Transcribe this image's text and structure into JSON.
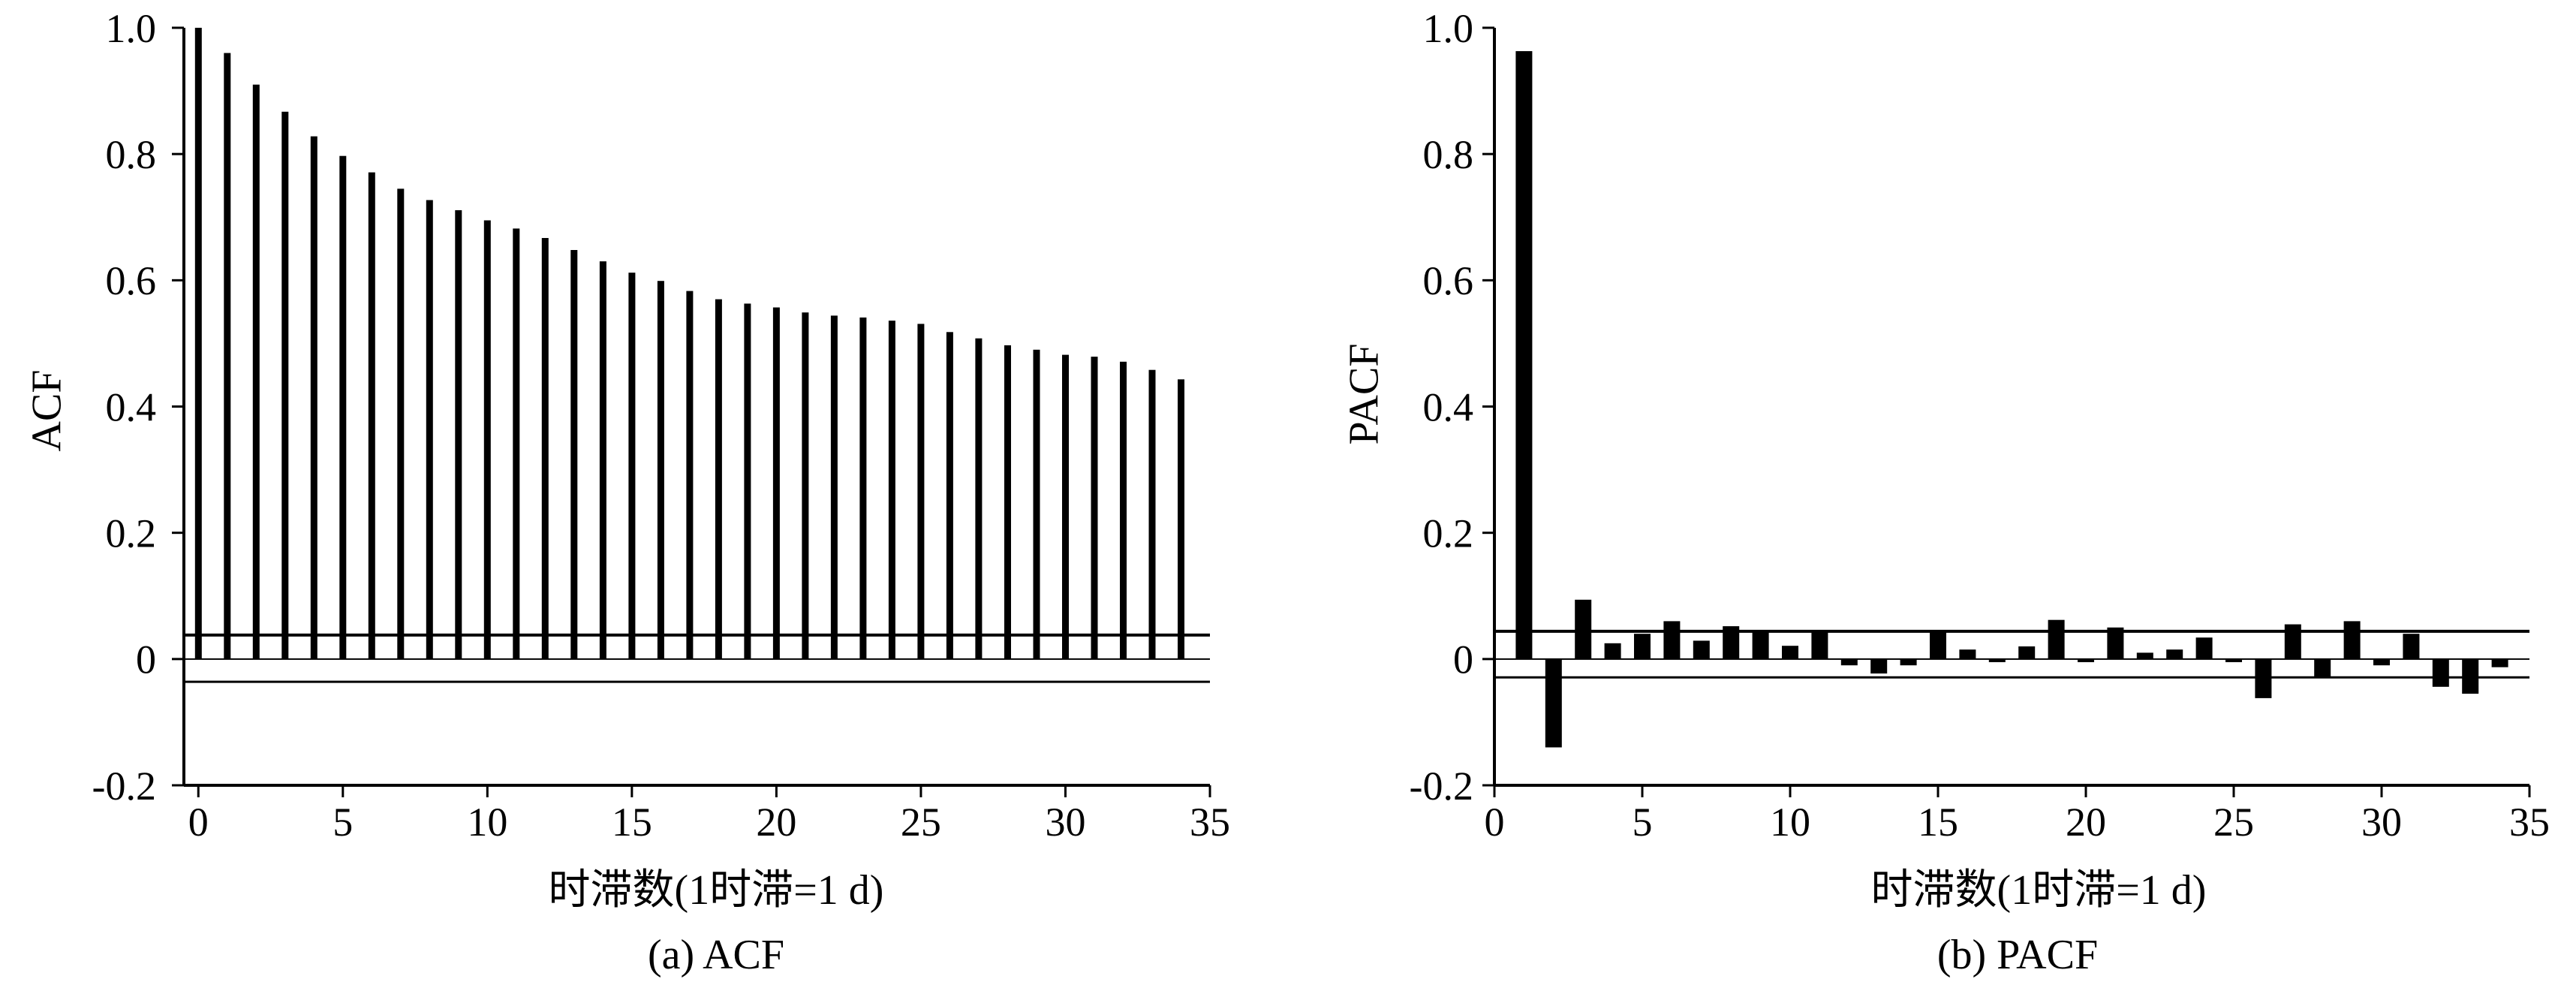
{
  "chart_data": [
    {
      "type": "bar",
      "caption": "(a) ACF",
      "ylabel": "ACF",
      "xlabel": "时滞数(1时滞=1 d)",
      "xlim": [
        -0.5,
        35
      ],
      "ylim": [
        -0.2,
        1.0
      ],
      "x_ticks": [
        "0",
        "5",
        "10",
        "15",
        "20",
        "25",
        "30",
        "35"
      ],
      "y_ticks": [
        "-0.2",
        "0",
        "0.2",
        "0.4",
        "0.6",
        "0.8",
        "1.0"
      ],
      "grid": false,
      "x": [
        0,
        1,
        2,
        3,
        4,
        5,
        6,
        7,
        8,
        9,
        10,
        11,
        12,
        13,
        14,
        15,
        16,
        17,
        18,
        19,
        20,
        21,
        22,
        23,
        24,
        25,
        26,
        27,
        28,
        29,
        30,
        31,
        32,
        33,
        34
      ],
      "values": [
        1.0,
        0.96,
        0.91,
        0.867,
        0.828,
        0.797,
        0.771,
        0.745,
        0.727,
        0.711,
        0.695,
        0.682,
        0.667,
        0.648,
        0.63,
        0.612,
        0.599,
        0.583,
        0.57,
        0.563,
        0.557,
        0.549,
        0.544,
        0.541,
        0.536,
        0.531,
        0.518,
        0.508,
        0.497,
        0.49,
        0.482,
        0.479,
        0.471,
        0.458,
        0.443
      ],
      "confidence_bounds": [
        0.038,
        -0.036
      ]
    },
    {
      "type": "bar",
      "caption": "(b) PACF",
      "ylabel": "PACF",
      "xlabel": "时滞数(1时滞=1 d)",
      "xlim": [
        0,
        35
      ],
      "ylim": [
        -0.2,
        1.0
      ],
      "x_ticks": [
        "0",
        "5",
        "10",
        "15",
        "20",
        "25",
        "30",
        "35"
      ],
      "y_ticks": [
        "-0.2",
        "0",
        "0.2",
        "0.4",
        "0.6",
        "0.8",
        "1.0"
      ],
      "grid": false,
      "x": [
        1,
        2,
        3,
        4,
        5,
        6,
        7,
        8,
        9,
        10,
        11,
        12,
        13,
        14,
        15,
        16,
        17,
        18,
        19,
        20,
        21,
        22,
        23,
        24,
        25,
        26,
        27,
        28,
        29,
        30,
        31,
        32,
        33,
        34
      ],
      "values": [
        0.963,
        -0.14,
        0.094,
        0.025,
        0.04,
        0.06,
        0.029,
        0.052,
        0.042,
        0.021,
        0.044,
        -0.01,
        -0.023,
        -0.01,
        0.042,
        0.015,
        -0.005,
        0.02,
        0.062,
        -0.005,
        0.05,
        0.01,
        0.015,
        0.034,
        -0.005,
        -0.062,
        0.055,
        -0.029,
        0.06,
        -0.01,
        0.04,
        -0.044,
        -0.055,
        -0.013
      ],
      "confidence_bounds": [
        0.044,
        -0.029
      ]
    }
  ]
}
